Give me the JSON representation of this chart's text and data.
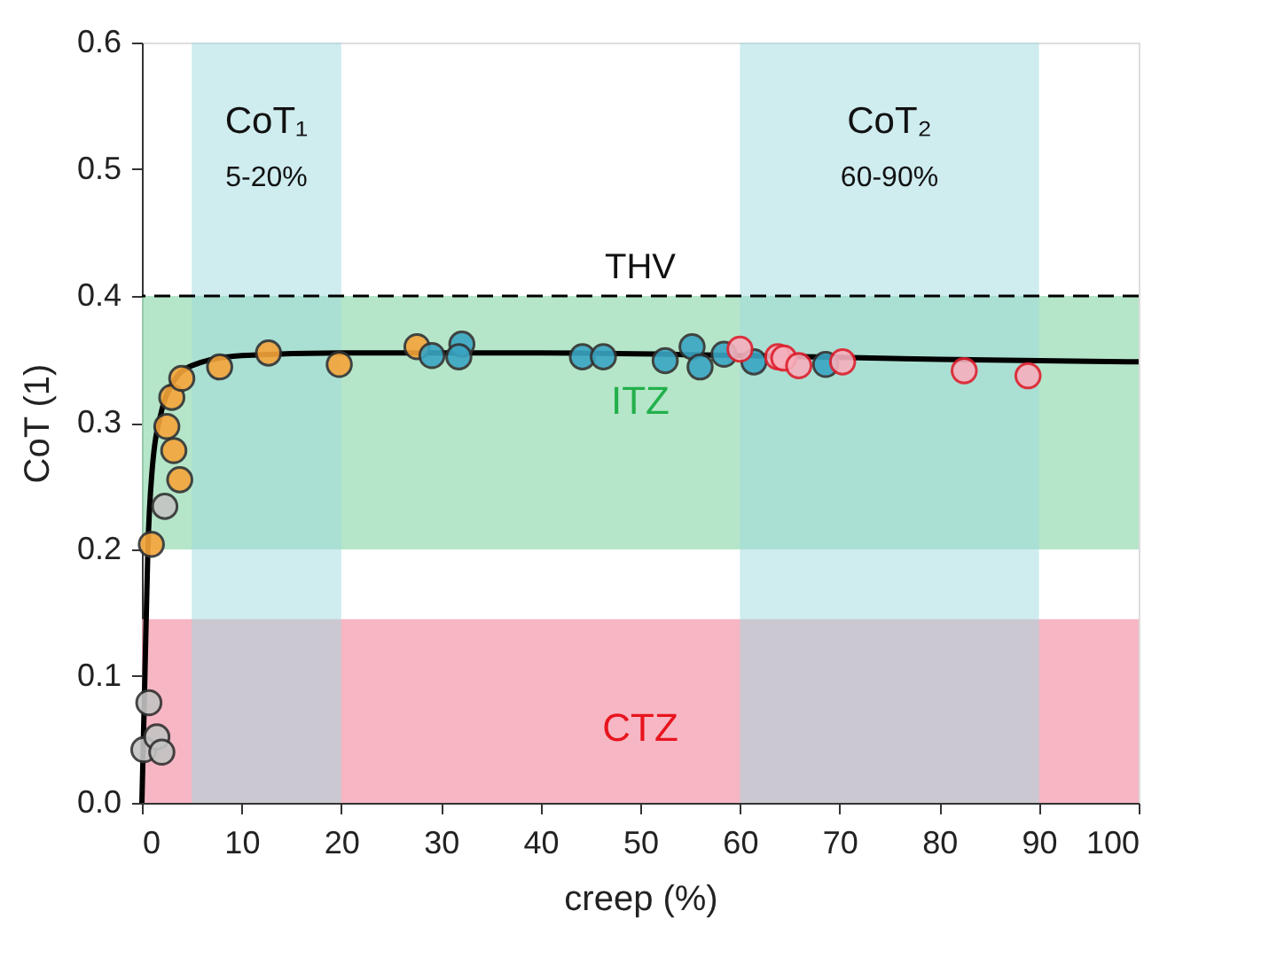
{
  "chart_data": {
    "type": "scatter",
    "xlabel": "creep (%)",
    "ylabel": "CoT (1)",
    "xlim": [
      0,
      100
    ],
    "ylim": [
      0,
      0.6
    ],
    "xticks": [
      0,
      10,
      20,
      30,
      40,
      50,
      60,
      70,
      80,
      90,
      100
    ],
    "yticks": [
      {
        "value": 0,
        "label": "0.0"
      },
      {
        "value": 0.1,
        "label": "0.1"
      },
      {
        "value": 0.2,
        "label": "0.2"
      },
      {
        "value": 0.3,
        "label": "0.3"
      },
      {
        "value": 0.4,
        "label": "0.4"
      },
      {
        "value": 0.5,
        "label": "0.5"
      },
      {
        "value": 0.6,
        "label": "0.6"
      }
    ],
    "grid": false,
    "marker": "circle",
    "series": [
      {
        "type": "line",
        "color": "#000000",
        "marker": "none",
        "line_style": "solid",
        "x": [
          0,
          0.3,
          0.6,
          1,
          2,
          3,
          5,
          10,
          20,
          40,
          60,
          80,
          100
        ],
        "values": [
          0,
          0.1,
          0.2,
          0.26,
          0.31,
          0.33,
          0.345,
          0.353,
          0.355,
          0.355,
          0.353,
          0.35,
          0.348
        ]
      },
      {
        "color": "#f5a53a",
        "x": [
          0.95,
          3.8,
          3.2,
          2.5,
          3.0,
          4.0,
          7.8,
          12.7,
          19.8,
          27.6
        ],
        "values": [
          0.204,
          0.255,
          0.278,
          0.297,
          0.32,
          0.335,
          0.344,
          0.355,
          0.346,
          0.36
        ]
      },
      {
        "color": "#c4c4c4",
        "x": [
          2.3,
          0.7,
          0.2,
          1.5,
          2.0
        ],
        "values": [
          0.234,
          0.079,
          0.042,
          0.052,
          0.04
        ]
      },
      {
        "color": "#3aa6c4",
        "x": [
          29.1,
          32.1,
          31.8,
          44.2,
          46.3,
          52.5,
          55.2,
          56.0,
          58.4,
          61.4,
          68.6
        ],
        "values": [
          0.353,
          0.362,
          0.352,
          0.352,
          0.352,
          0.349,
          0.36,
          0.344,
          0.354,
          0.348,
          0.346
        ]
      },
      {
        "color": "#f6b0bd",
        "x": [
          60.0,
          63.8,
          64.4,
          65.9,
          70.3,
          82.5,
          88.9
        ],
        "values": [
          0.358,
          0.352,
          0.351,
          0.345,
          0.348,
          0.341,
          0.337
        ]
      }
    ],
    "bands": [
      {
        "axis": "y",
        "from": 0.2,
        "to": 0.4,
        "label": "ITZ",
        "color": "#a8e2c0"
      },
      {
        "axis": "y",
        "from": 0,
        "to": 0.145,
        "label": "CTZ",
        "color": "#f4a9b8"
      },
      {
        "axis": "x",
        "from": 5,
        "to": 20,
        "label": "CoT₁",
        "color": "#9fd9e0"
      },
      {
        "axis": "x",
        "from": 60,
        "to": 90,
        "label": "CoT₂",
        "color": "#9fd9e0"
      }
    ],
    "ref_lines": [
      {
        "axis": "y",
        "value": 0.4,
        "label": "THV",
        "color": "#000000",
        "line_style": "dashed"
      }
    ],
    "annotations": [
      "5-20%",
      "60-90%"
    ]
  }
}
